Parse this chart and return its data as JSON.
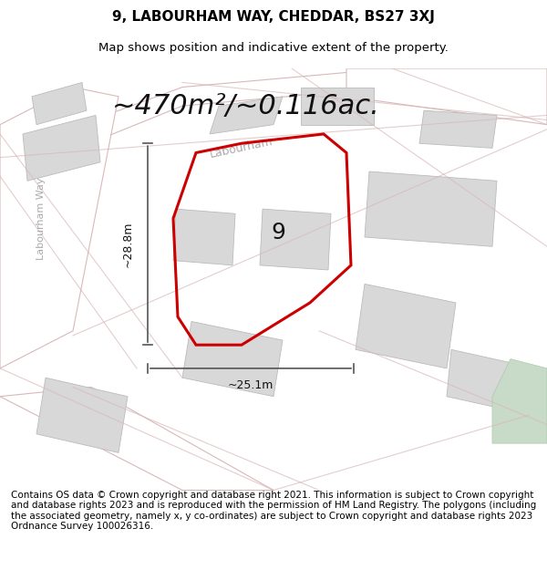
{
  "title_line1": "9, LABOURHAM WAY, CHEDDAR, BS27 3XJ",
  "title_line2": "Map shows position and indicative extent of the property.",
  "area_text": "~470m²/~0.116ac.",
  "number_label": "9",
  "dim_width": "~25.1m",
  "dim_height": "~28.8m",
  "street_label": "Labourham",
  "side_label": "Labourham Way",
  "footer_text": "Contains OS data © Crown copyright and database right 2021. This information is subject to Crown copyright and database rights 2023 and is reproduced with the permission of HM Land Registry. The polygons (including the associated geometry, namely x, y co-ordinates) are subject to Crown copyright and database rights 2023 Ordnance Survey 100026316.",
  "bg_color": "#f5f5f5",
  "map_bg": "#f2f0ef",
  "road_color": "#ffffff",
  "road_stroke": "#d9b8b8",
  "building_fill": "#d8d8d8",
  "building_stroke": "#bbbbbb",
  "red_polygon_color": "#cc0000",
  "highlight_fill": "#e8e8e8",
  "green_patch": "#c8dbc8",
  "dim_line_color": "#555555",
  "title_fontsize": 11,
  "subtitle_fontsize": 9.5,
  "area_fontsize": 22,
  "label_fontsize": 18,
  "footer_fontsize": 7.5
}
